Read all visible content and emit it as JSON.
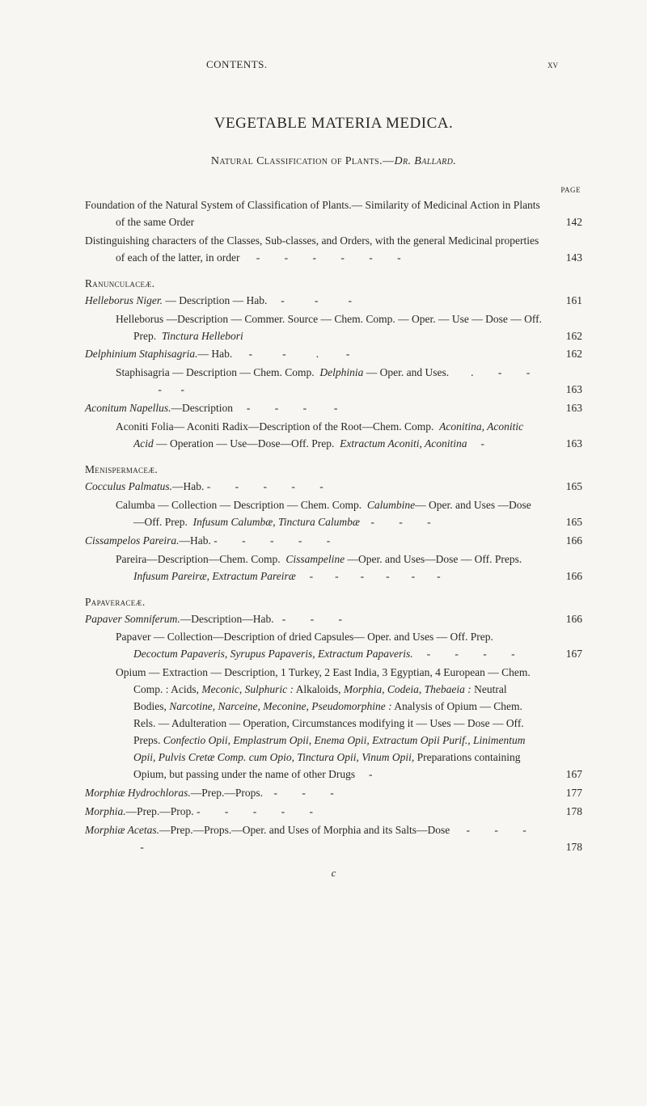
{
  "header": {
    "center": "CONTENTS.",
    "right": "xv"
  },
  "mainTitle": "VEGETABLE MATERIA MEDICA.",
  "subtitle": "Natural Classification of Plants.—",
  "subtitleAuthor": "Dr. Ballard.",
  "pageLabel": "PAGE",
  "entries": [
    {
      "type": "main",
      "text": "Foundation of the Natural System of Classification of Plants.— Similarity of Medicinal Action in Plants of the same Order",
      "page": "142"
    },
    {
      "type": "main",
      "text": "Distinguishing characters of the Classes, Sub-classes, and Orders, with the general Medicinal properties of each of the latter, in order      -         -         -         -         -         -",
      "page": "143"
    },
    {
      "type": "section",
      "text": "Ranunculaceæ."
    },
    {
      "type": "italic-main",
      "textItalic": "Helleborus Niger.",
      "textRest": " — Description — Hab.     -           -           -",
      "page": "161"
    },
    {
      "type": "sub",
      "text": "Helleborus —Description — Commer. Source — Chem. Comp. — Oper. — Use — Dose — Off. Prep.  ",
      "textItalic": "Tinctura Hellebori",
      "page": "162"
    },
    {
      "type": "italic-main",
      "textItalic": "Delphinium Staphisagria.",
      "textRest": "— Hab.      -           -           .          -",
      "page": "162"
    },
    {
      "type": "sub",
      "text": "Staphisagria — Description — Chem. Comp.  ",
      "textItalic": "Delphinia",
      "textRest2": " — Oper. and Uses.        .         -         -         -       -",
      "page": "163"
    },
    {
      "type": "italic-main",
      "textItalic": "Aconitum Napellus.",
      "textRest": "—Description     -         -         -          -",
      "page": "163"
    },
    {
      "type": "sub",
      "text": "Aconiti Folia— Aconiti Radix—Description of the Root—Chem. Comp.  ",
      "textItalic": "Aconitina, Aconitic Acid",
      "textRest2": " — Operation — Use—Dose—Off. Prep.  ",
      "textItalic2": "Extractum Aconiti, Aconitina",
      "textRest3": "     -",
      "page": "163"
    },
    {
      "type": "section",
      "text": "Menispermaceæ."
    },
    {
      "type": "italic-main",
      "textItalic": "Cocculus Palmatus.",
      "textRest": "—Hab. -         -         -         -         -",
      "page": "165"
    },
    {
      "type": "sub",
      "text": "Calumba — Collection — Description — Chem. Comp.  ",
      "textItalic": "Calumbine",
      "textRest2": "— Oper. and Uses —Dose —Off. Prep.  ",
      "textItalic2": "Infusum Calumbæ, Tinctura Calumbæ",
      "textRest3": "    -         -         -",
      "page": "165"
    },
    {
      "type": "italic-main",
      "textItalic": "Cissampelos Pareira.",
      "textRest": "—Hab. -         -         -         -         -",
      "page": "166"
    },
    {
      "type": "sub",
      "text": "Pareira—Description—Chem. Comp.  ",
      "textItalic": "Cissampeline",
      "textRest2": " —Oper. and Uses—Dose — Off. Preps.  ",
      "textItalic2": "Infusum Pareiræ, Extractum Pareiræ",
      "textRest3": "     -        -        -        -        -        -",
      "page": "166"
    },
    {
      "type": "section",
      "text": "Papaveraceæ."
    },
    {
      "type": "italic-main",
      "textItalic": "Papaver Somniferum.",
      "textRest": "—Description—Hab.   -         -         -",
      "page": "166"
    },
    {
      "type": "sub",
      "text": "Papaver — Collection—Description of dried Capsules— Oper. and Uses — Off. Prep.  ",
      "textItalic": "Decoctum Papaveris, Syrupus Papaveris, Extractum Papaveris.",
      "textRest2": "     -         -         -         -",
      "page": "167"
    },
    {
      "type": "sub-long",
      "text": "Opium — Extraction — Description, 1 Turkey, 2 East India, 3 Egyptian, 4 European — Chem. Comp. : Acids, ",
      "textItalic": "Meconic, Sulphuric :",
      "textRest2": " Alkaloids, ",
      "textItalic2": "Morphia, Codeia, Thebaeia :",
      "textRest3": " Neutral Bodies, ",
      "textItalic3": "Narcotine, Narceine, Meconine, Pseudomorphine :",
      "textRest4": " Analysis of Opium — Chem. Rels. — Adulteration — Operation, Circumstances modifying it — Uses — Dose — Off. Preps. ",
      "textItalic4": "Confectio Opii, Emplastrum Opii, Enema Opii, Extractum Opii Purif., Linimentum Opii, Pulvis Cretæ Comp. cum Opio, Tinctura Opii, Vinum Opii,",
      "textRest5": " Preparations containing Opium, but passing under the name of other Drugs     -",
      "page": "167"
    },
    {
      "type": "italic-main",
      "textItalic": "Morphiæ Hydrochloras.",
      "textRest": "—Prep.—Props.    -         -         -",
      "page": "177"
    },
    {
      "type": "italic-main",
      "textItalic": "Morphia.",
      "textRest": "—Prep.—Prop. -         -         -         -         -",
      "page": "178"
    },
    {
      "type": "italic-main",
      "textItalic": "Morphiæ Acetas.",
      "textRest": "—Prep.—Props.—Oper. and Uses of Morphia and its Salts—Dose      -         -         -         -",
      "page": "178"
    }
  ],
  "bottomMark": "c"
}
